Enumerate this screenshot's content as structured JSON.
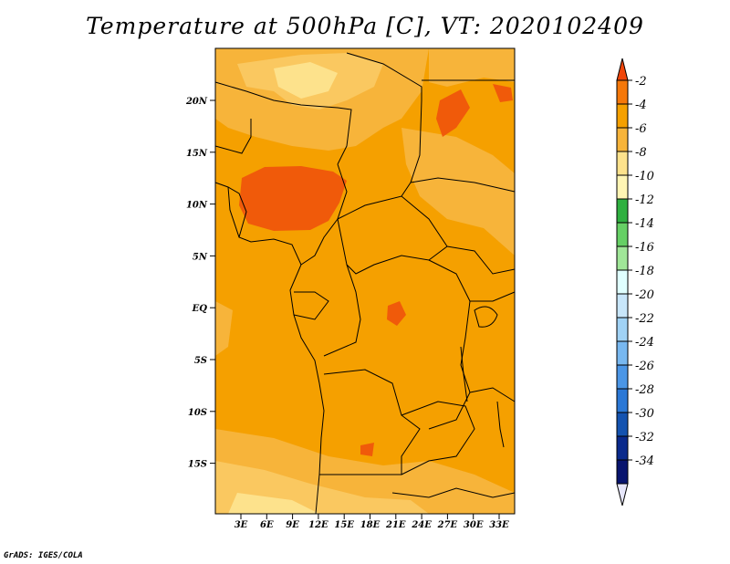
{
  "title": "Temperature at 500hPa [C], VT: 2020102409",
  "credit": "GrADS: IGES/COLA",
  "map": {
    "lat_ticks": [
      "20N",
      "15N",
      "10N",
      "5N",
      "EQ",
      "5S",
      "10S",
      "15S"
    ],
    "lon_ticks": [
      "3E",
      "6E",
      "9E",
      "12E",
      "15E",
      "18E",
      "21E",
      "24E",
      "27E",
      "30E",
      "33E"
    ],
    "field_colors": {
      "very_warm": "#f05a0a",
      "warm": "#f5a000",
      "mild": "#f7b43a",
      "cooler": "#fac860",
      "cool": "#fde28c"
    }
  },
  "colorbar": {
    "labels": [
      "-2",
      "-4",
      "-6",
      "-8",
      "-10",
      "-12",
      "-14",
      "-16",
      "-18",
      "-20",
      "-22",
      "-24",
      "-26",
      "-28",
      "-30",
      "-32",
      "-34"
    ],
    "colors": [
      "#f0460a",
      "#f5780a",
      "#f5a000",
      "#f7b43a",
      "#fde28c",
      "#fff5b4",
      "#2fb040",
      "#66d065",
      "#a0e698",
      "#e0ffff",
      "#c8e6fa",
      "#a0d2f5",
      "#78b8f0",
      "#4b96e6",
      "#2b78d6",
      "#1453b0",
      "#0a2a8c",
      "#08146e"
    ],
    "top_arrow_color": "#f0460a",
    "bottom_arrow_color": "#e6e6fa"
  }
}
